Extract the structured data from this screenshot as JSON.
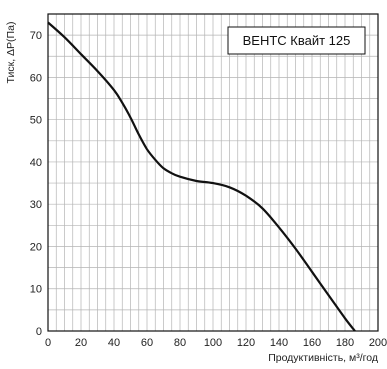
{
  "chart_data": {
    "type": "line",
    "title": "",
    "xlabel": "Продуктивність, м³/год",
    "ylabel": "Тиск, ΔР(Па)",
    "xlim": [
      0,
      200
    ],
    "ylim": [
      0,
      75
    ],
    "xticks": [
      0,
      20,
      40,
      60,
      80,
      100,
      120,
      140,
      160,
      180,
      200
    ],
    "yticks": [
      0,
      10,
      20,
      30,
      40,
      50,
      60,
      70
    ],
    "grid": true,
    "legend_position": "top-right",
    "series": [
      {
        "name": "ВЕНТС Квайт 125",
        "color": "#111111",
        "x": [
          0,
          10,
          20,
          30,
          40,
          45,
          50,
          55,
          60,
          65,
          70,
          75,
          80,
          90,
          100,
          110,
          120,
          130,
          140,
          150,
          160,
          170,
          180,
          186
        ],
        "y": [
          73,
          69.5,
          65.5,
          61.5,
          57,
          54,
          50.5,
          46.5,
          43,
          40.5,
          38.5,
          37.3,
          36.5,
          35.5,
          35,
          34,
          32,
          29,
          24.5,
          19.5,
          14,
          8.5,
          3,
          0
        ]
      }
    ]
  }
}
